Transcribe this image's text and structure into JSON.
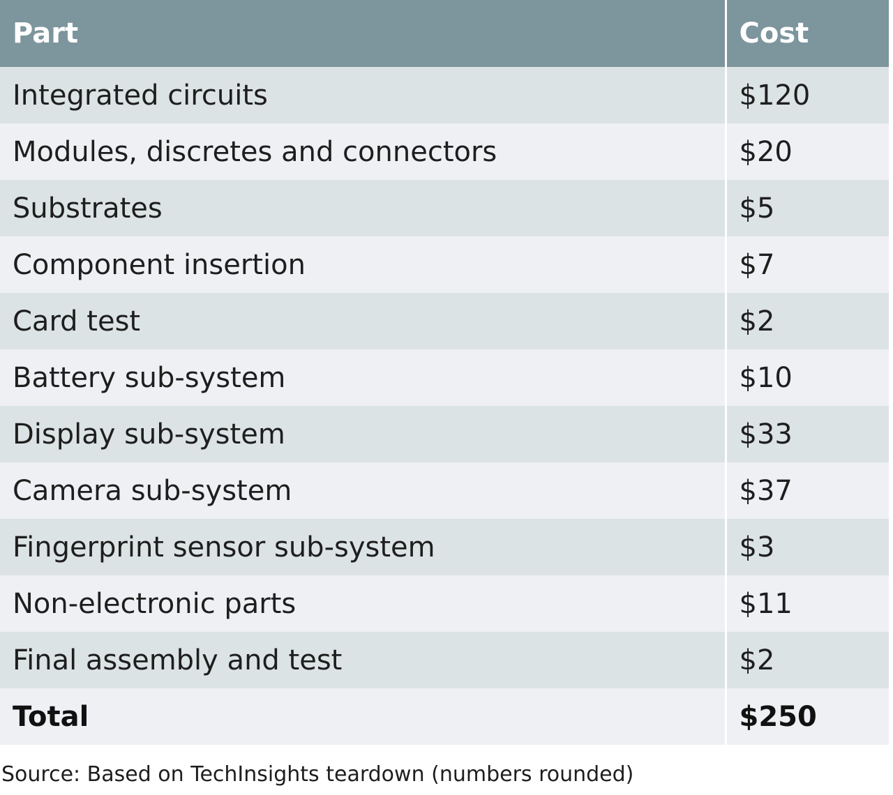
{
  "chart_data": {
    "type": "table",
    "columns": [
      "Part",
      "Cost"
    ],
    "rows": [
      {
        "part": "Integrated circuits",
        "cost": "$120"
      },
      {
        "part": "Modules, discretes and connectors",
        "cost": "$20"
      },
      {
        "part": "Substrates",
        "cost": "$5"
      },
      {
        "part": "Component insertion",
        "cost": "$7"
      },
      {
        "part": "Card test",
        "cost": "$2"
      },
      {
        "part": "Battery sub-system",
        "cost": "$10"
      },
      {
        "part": "Display sub-system",
        "cost": "$33"
      },
      {
        "part": "Camera sub-system",
        "cost": "$37"
      },
      {
        "part": "Fingerprint sensor sub-system",
        "cost": "$3"
      },
      {
        "part": "Non-electronic parts",
        "cost": "$11"
      },
      {
        "part": "Final assembly and test",
        "cost": "$2"
      }
    ],
    "total": {
      "label": "Total",
      "cost": "$250"
    },
    "source": "Source: Based on TechInsights teardown (numbers rounded)",
    "colors": {
      "header_bg": "#7d959d",
      "row_odd_bg": "#dce3e4",
      "row_even_bg": "#eef0f3"
    }
  }
}
